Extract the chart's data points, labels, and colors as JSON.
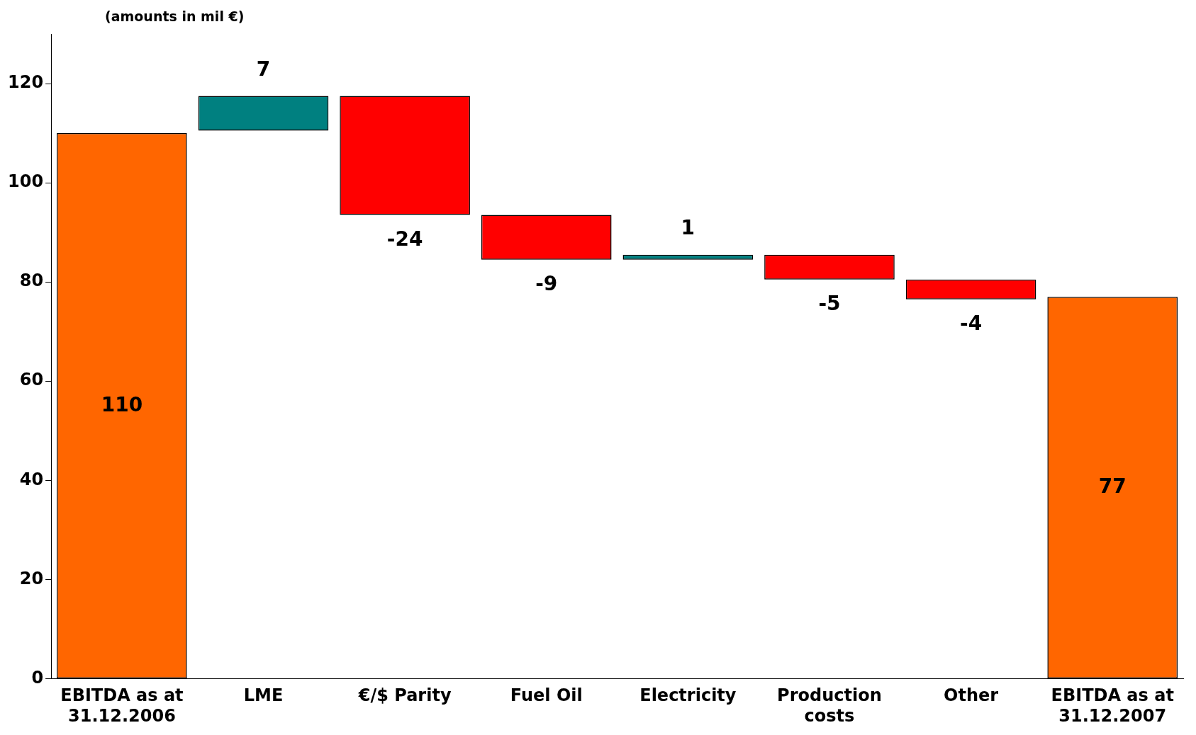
{
  "chart_data": {
    "type": "bar",
    "annotations": [
      "(amounts in mil €)"
    ],
    "categories": [
      "EBITDA as at 31.12.2006",
      "LME",
      "€/$ Parity",
      "Fuel Oil",
      "Electricity",
      "Production costs",
      "Other",
      "EBITDA as at 31.12.2007"
    ],
    "values": [
      110,
      7,
      -24,
      -9,
      1,
      -5,
      -4,
      77
    ],
    "base": [
      0,
      110.5,
      117.5,
      93.5,
      84.5,
      85.5,
      80.5,
      0
    ],
    "colors": [
      "#ff6600",
      "#008080",
      "#ff0000",
      "#ff0000",
      "#008080",
      "#ff0000",
      "#ff0000",
      "#ff6600"
    ],
    "ylim": [
      0,
      130
    ],
    "yticks": [
      0,
      20,
      40,
      60,
      80,
      100,
      120
    ],
    "grid": false,
    "legend": false,
    "data_labels": true
  }
}
